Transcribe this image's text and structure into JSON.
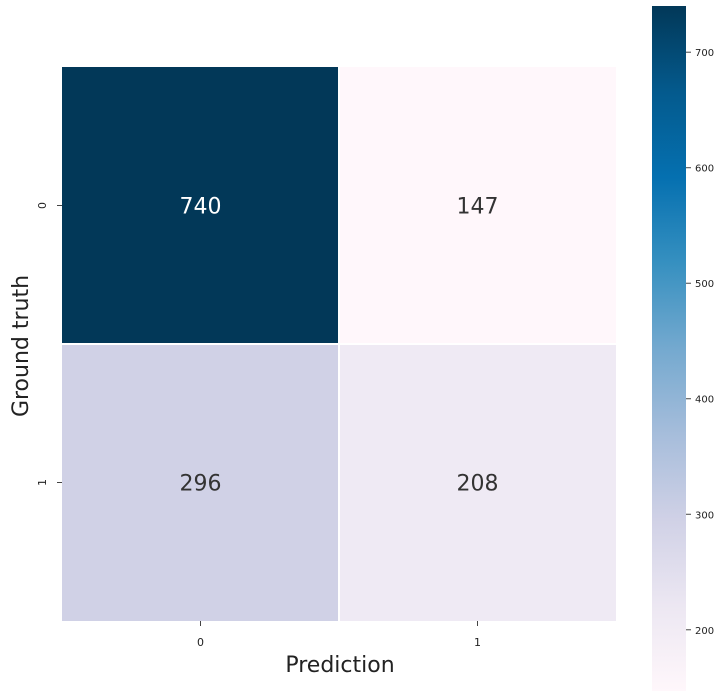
{
  "chart_data": {
    "type": "heatmap",
    "x_categories": [
      "0",
      "1"
    ],
    "y_categories": [
      "0",
      "1"
    ],
    "values": [
      [
        740,
        147
      ],
      [
        296,
        208
      ]
    ],
    "xlabel": "Prediction",
    "ylabel": "Ground truth",
    "colorbar": {
      "range": [
        147,
        740
      ],
      "ticks": [
        200,
        300,
        400,
        500,
        600,
        700
      ],
      "colormap": "PuBu"
    }
  }
}
